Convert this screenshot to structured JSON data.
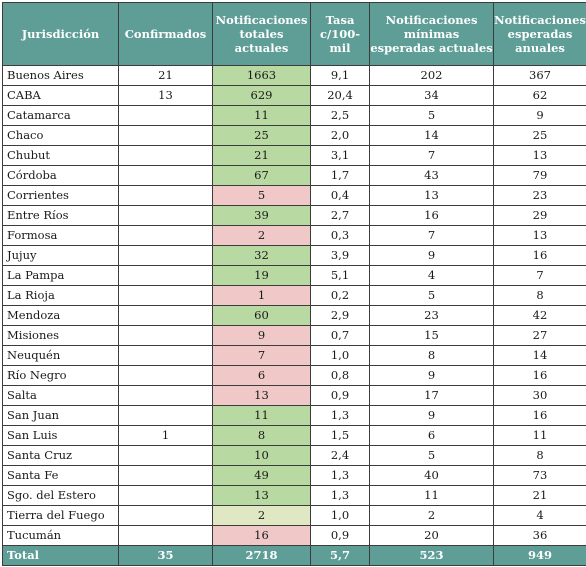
{
  "headers": [
    "Jurisdicción",
    "Confirmados",
    "Notificaciones totales actuales",
    "Tasa c/100-mil",
    "Notificaciones mínimas esperadas actuales",
    "Notificaciones esperadas anuales"
  ],
  "colors": {
    "header": "#5e9e97",
    "above": "#b9d9a3",
    "below": "#f0c8c8",
    "equal": "#dfe8c2"
  },
  "rows": [
    {
      "jurisdiccion": "Buenos Aires",
      "confirmados": "21",
      "notificaciones": "1663",
      "status": "green",
      "tasa": "9,1",
      "minimas": "202",
      "anuales": "367"
    },
    {
      "jurisdiccion": "CABA",
      "confirmados": "13",
      "notificaciones": "629",
      "status": "green",
      "tasa": "20,4",
      "minimas": "34",
      "anuales": "62"
    },
    {
      "jurisdiccion": "Catamarca",
      "confirmados": "",
      "notificaciones": "11",
      "status": "green",
      "tasa": "2,5",
      "minimas": "5",
      "anuales": "9"
    },
    {
      "jurisdiccion": "Chaco",
      "confirmados": "",
      "notificaciones": "25",
      "status": "green",
      "tasa": "2,0",
      "minimas": "14",
      "anuales": "25"
    },
    {
      "jurisdiccion": "Chubut",
      "confirmados": "",
      "notificaciones": "21",
      "status": "green",
      "tasa": "3,1",
      "minimas": "7",
      "anuales": "13"
    },
    {
      "jurisdiccion": "Córdoba",
      "confirmados": "",
      "notificaciones": "67",
      "status": "green",
      "tasa": "1,7",
      "minimas": "43",
      "anuales": "79"
    },
    {
      "jurisdiccion": "Corrientes",
      "confirmados": "",
      "notificaciones": "5",
      "status": "pink",
      "tasa": "0,4",
      "minimas": "13",
      "anuales": "23"
    },
    {
      "jurisdiccion": "Entre Ríos",
      "confirmados": "",
      "notificaciones": "39",
      "status": "green",
      "tasa": "2,7",
      "minimas": "16",
      "anuales": "29"
    },
    {
      "jurisdiccion": "Formosa",
      "confirmados": "",
      "notificaciones": "2",
      "status": "pink",
      "tasa": "0,3",
      "minimas": "7",
      "anuales": "13"
    },
    {
      "jurisdiccion": "Jujuy",
      "confirmados": "",
      "notificaciones": "32",
      "status": "green",
      "tasa": "3,9",
      "minimas": "9",
      "anuales": "16"
    },
    {
      "jurisdiccion": "La Pampa",
      "confirmados": "",
      "notificaciones": "19",
      "status": "green",
      "tasa": "5,1",
      "minimas": "4",
      "anuales": "7"
    },
    {
      "jurisdiccion": "La Rioja",
      "confirmados": "",
      "notificaciones": "1",
      "status": "pink",
      "tasa": "0,2",
      "minimas": "5",
      "anuales": "8"
    },
    {
      "jurisdiccion": "Mendoza",
      "confirmados": "",
      "notificaciones": "60",
      "status": "green",
      "tasa": "2,9",
      "minimas": "23",
      "anuales": "42"
    },
    {
      "jurisdiccion": "Misiones",
      "confirmados": "",
      "notificaciones": "9",
      "status": "pink",
      "tasa": "0,7",
      "minimas": "15",
      "anuales": "27"
    },
    {
      "jurisdiccion": "Neuquén",
      "confirmados": "",
      "notificaciones": "7",
      "status": "pink",
      "tasa": "1,0",
      "minimas": "8",
      "anuales": "14"
    },
    {
      "jurisdiccion": "Río Negro",
      "confirmados": "",
      "notificaciones": "6",
      "status": "pink",
      "tasa": "0,8",
      "minimas": "9",
      "anuales": "16"
    },
    {
      "jurisdiccion": "Salta",
      "confirmados": "",
      "notificaciones": "13",
      "status": "pink",
      "tasa": "0,9",
      "minimas": "17",
      "anuales": "30"
    },
    {
      "jurisdiccion": "San Juan",
      "confirmados": "",
      "notificaciones": "11",
      "status": "green",
      "tasa": "1,3",
      "minimas": "9",
      "anuales": "16"
    },
    {
      "jurisdiccion": "San Luis",
      "confirmados": "1",
      "notificaciones": "8",
      "status": "green",
      "tasa": "1,5",
      "minimas": "6",
      "anuales": "11"
    },
    {
      "jurisdiccion": "Santa Cruz",
      "confirmados": "",
      "notificaciones": "10",
      "status": "green",
      "tasa": "2,4",
      "minimas": "5",
      "anuales": "8"
    },
    {
      "jurisdiccion": "Santa Fe",
      "confirmados": "",
      "notificaciones": "49",
      "status": "green",
      "tasa": "1,3",
      "minimas": "40",
      "anuales": "73"
    },
    {
      "jurisdiccion": "Sgo. del Estero",
      "confirmados": "",
      "notificaciones": "13",
      "status": "green",
      "tasa": "1,3",
      "minimas": "11",
      "anuales": "21"
    },
    {
      "jurisdiccion": "Tierra del Fuego",
      "confirmados": "",
      "notificaciones": "2",
      "status": "pale",
      "tasa": "1,0",
      "minimas": "2",
      "anuales": "4"
    },
    {
      "jurisdiccion": "Tucumán",
      "confirmados": "",
      "notificaciones": "16",
      "status": "pink",
      "tasa": "0,9",
      "minimas": "20",
      "anuales": "36"
    }
  ],
  "total": {
    "jurisdiccion": "Total",
    "confirmados": "35",
    "notificaciones": "2718",
    "tasa": "5,7",
    "minimas": "523",
    "anuales": "949"
  }
}
